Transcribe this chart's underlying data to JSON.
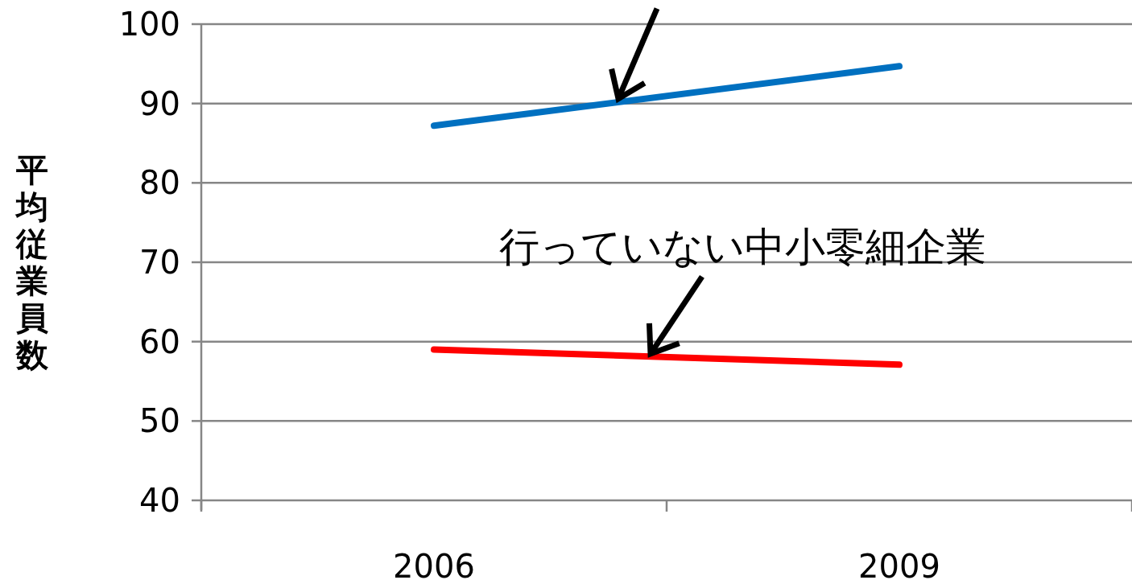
{
  "chart_data": {
    "type": "line",
    "ylabel": "平均従業員数",
    "categories": [
      "2006",
      "2009"
    ],
    "series": [
      {
        "color": "#0070c0",
        "values": [
          87.2,
          94.7
        ]
      },
      {
        "name": "行っていない中小零細企業",
        "color": "#ff0000",
        "values": [
          59.0,
          57.1
        ]
      }
    ],
    "ylim": [
      40,
      100
    ],
    "yticks": [
      40,
      50,
      60,
      70,
      80,
      90,
      100
    ],
    "grid": "y",
    "marker": "none",
    "line_style": "solid"
  }
}
